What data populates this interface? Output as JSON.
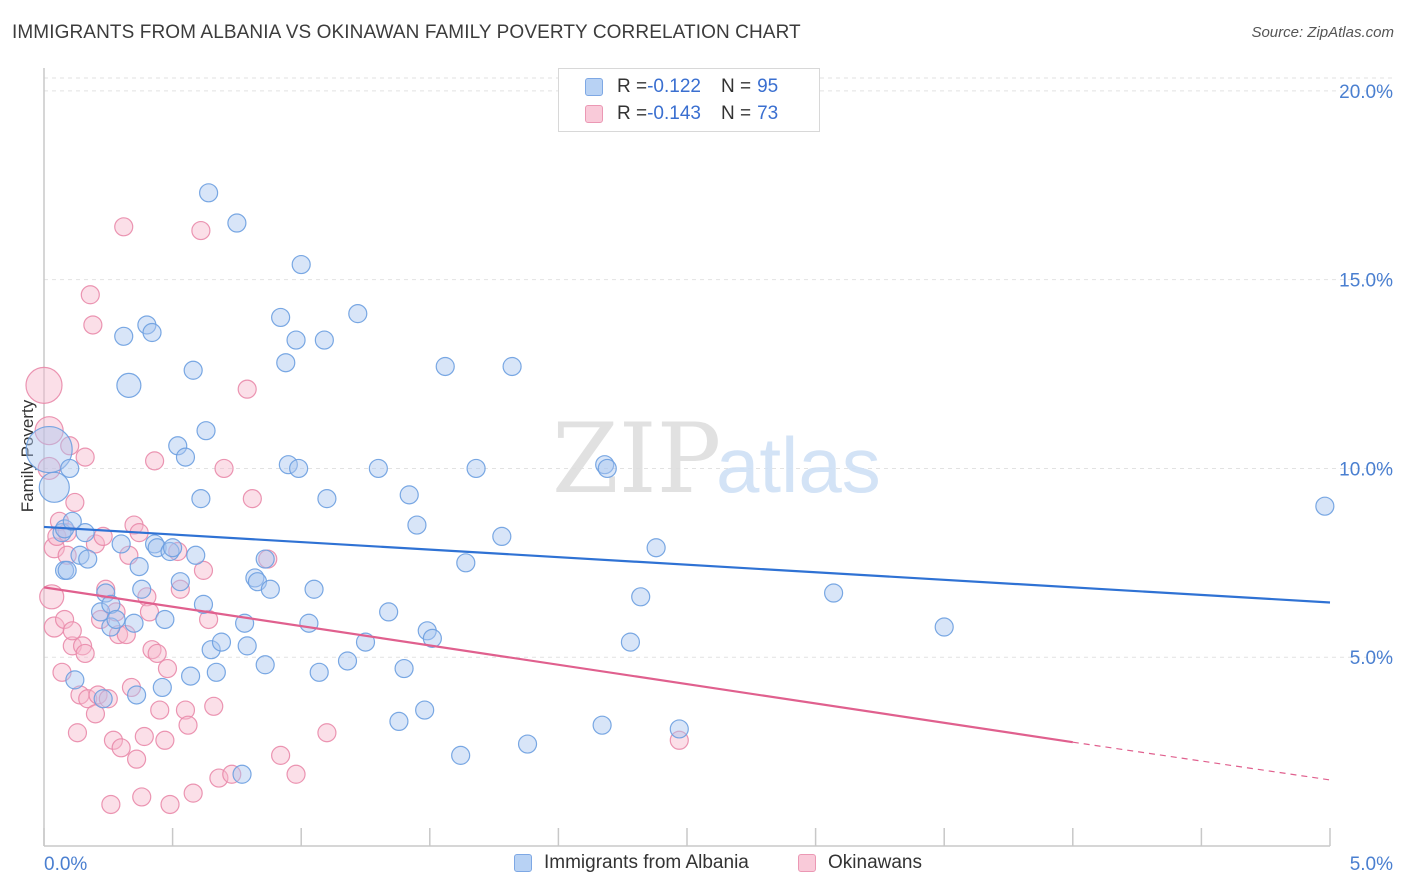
{
  "header": {
    "title": "IMMIGRANTS FROM ALBANIA VS OKINAWAN FAMILY POVERTY CORRELATION CHART",
    "source": "Source: ZipAtlas.com"
  },
  "watermark": {
    "zip": "ZIP",
    "atlas": "atlas"
  },
  "legend": {
    "rows": [
      {
        "r_label": "R = ",
        "r_value": "-0.122",
        "n_label": "N = ",
        "n_value": "95",
        "color": "#a8c6f0"
      },
      {
        "r_label": "R = ",
        "r_value": "-0.143",
        "n_label": "N = ",
        "n_value": "73",
        "color": "#f6b8cc"
      }
    ]
  },
  "chart_data": {
    "type": "scatter",
    "title": "IMMIGRANTS FROM ALBANIA VS OKINAWAN FAMILY POVERTY CORRELATION CHART",
    "ylabel": "Family Poverty",
    "xlabel": "",
    "xlim": [
      0,
      5
    ],
    "ylim": [
      0,
      20.5
    ],
    "x_tick_labels": [
      "0.0%",
      "5.0%"
    ],
    "y_ticks": [
      5,
      10,
      15,
      20
    ],
    "y_tick_labels": [
      "5.0%",
      "10.0%",
      "15.0%",
      "20.0%"
    ],
    "grid": "horizontal dashed",
    "legend_position": "top-center",
    "series": [
      {
        "name": "Immigrants from Albania",
        "color": "#a8c6f0",
        "stroke": "#6c9ee0",
        "trend": {
          "x": [
            0.0,
            5.0
          ],
          "y": [
            8.45,
            6.45
          ],
          "color": "#2f72d4"
        },
        "points": [
          [
            0.02,
            10.5
          ],
          [
            0.04,
            9.5
          ],
          [
            0.07,
            8.3
          ],
          [
            0.08,
            7.3
          ],
          [
            0.08,
            8.4
          ],
          [
            0.09,
            7.3
          ],
          [
            0.1,
            10.0
          ],
          [
            0.11,
            8.6
          ],
          [
            0.12,
            4.4
          ],
          [
            0.14,
            7.7
          ],
          [
            0.16,
            8.3
          ],
          [
            0.17,
            7.6
          ],
          [
            0.22,
            6.2
          ],
          [
            0.23,
            3.9
          ],
          [
            0.24,
            6.7
          ],
          [
            0.26,
            5.8
          ],
          [
            0.26,
            6.4
          ],
          [
            0.28,
            6.0
          ],
          [
            0.3,
            8.0
          ],
          [
            0.31,
            13.5
          ],
          [
            0.33,
            12.2
          ],
          [
            0.35,
            5.9
          ],
          [
            0.36,
            4.0
          ],
          [
            0.37,
            7.4
          ],
          [
            0.38,
            6.8
          ],
          [
            0.4,
            13.8
          ],
          [
            0.42,
            13.6
          ],
          [
            0.43,
            8.0
          ],
          [
            0.44,
            7.9
          ],
          [
            0.46,
            4.2
          ],
          [
            0.47,
            6.0
          ],
          [
            0.49,
            7.8
          ],
          [
            0.5,
            7.9
          ],
          [
            0.52,
            10.6
          ],
          [
            0.53,
            7.0
          ],
          [
            0.55,
            10.3
          ],
          [
            0.57,
            4.5
          ],
          [
            0.58,
            12.6
          ],
          [
            0.59,
            7.7
          ],
          [
            0.61,
            9.2
          ],
          [
            0.62,
            6.4
          ],
          [
            0.63,
            11.0
          ],
          [
            0.64,
            17.3
          ],
          [
            0.65,
            5.2
          ],
          [
            0.67,
            4.6
          ],
          [
            0.69,
            5.4
          ],
          [
            0.75,
            16.5
          ],
          [
            0.77,
            1.9
          ],
          [
            0.78,
            5.9
          ],
          [
            0.79,
            5.3
          ],
          [
            0.82,
            7.1
          ],
          [
            0.83,
            7.0
          ],
          [
            0.86,
            7.6
          ],
          [
            0.86,
            4.8
          ],
          [
            0.88,
            6.8
          ],
          [
            0.92,
            14.0
          ],
          [
            0.94,
            12.8
          ],
          [
            0.95,
            10.1
          ],
          [
            0.98,
            13.4
          ],
          [
            0.99,
            10.0
          ],
          [
            1.0,
            15.4
          ],
          [
            1.03,
            5.9
          ],
          [
            1.05,
            6.8
          ],
          [
            1.07,
            4.6
          ],
          [
            1.09,
            13.4
          ],
          [
            1.1,
            9.2
          ],
          [
            1.18,
            4.9
          ],
          [
            1.22,
            14.1
          ],
          [
            1.25,
            5.4
          ],
          [
            1.3,
            10.0
          ],
          [
            1.34,
            6.2
          ],
          [
            1.38,
            3.3
          ],
          [
            1.4,
            4.7
          ],
          [
            1.42,
            9.3
          ],
          [
            1.45,
            8.5
          ],
          [
            1.48,
            3.6
          ],
          [
            1.49,
            5.7
          ],
          [
            1.51,
            5.5
          ],
          [
            1.56,
            12.7
          ],
          [
            1.62,
            2.4
          ],
          [
            1.64,
            7.5
          ],
          [
            1.68,
            10.0
          ],
          [
            1.78,
            8.2
          ],
          [
            1.82,
            12.7
          ],
          [
            1.88,
            2.7
          ],
          [
            2.17,
            3.2
          ],
          [
            2.18,
            10.1
          ],
          [
            2.19,
            10.0
          ],
          [
            2.28,
            5.4
          ],
          [
            2.32,
            6.6
          ],
          [
            2.38,
            7.9
          ],
          [
            2.47,
            3.1
          ],
          [
            3.07,
            6.7
          ],
          [
            3.5,
            5.8
          ],
          [
            4.98,
            9.0
          ]
        ],
        "sizes": [
          46,
          30,
          18,
          18,
          18,
          18,
          18,
          18,
          18,
          18,
          18,
          18,
          18,
          18,
          18,
          18,
          18,
          18,
          18,
          18,
          24,
          18,
          18,
          18,
          18,
          18,
          18,
          18,
          18,
          18,
          18,
          18,
          18,
          18,
          18,
          18,
          18,
          18,
          18,
          18,
          18,
          18,
          18,
          18,
          18,
          18,
          18,
          18,
          18,
          18,
          18,
          18,
          18,
          18,
          18,
          18,
          18,
          18,
          18,
          18,
          18,
          18,
          18,
          18,
          18,
          18,
          18,
          18,
          18,
          18,
          18,
          18,
          18,
          18,
          18,
          18,
          18,
          18,
          18,
          18,
          18,
          18,
          18,
          18,
          18,
          18,
          18,
          18,
          18,
          18,
          18,
          18,
          18,
          18,
          18
        ]
      },
      {
        "name": "Okinawans",
        "color": "#f6b8cc",
        "stroke": "#e98aaa",
        "trend": {
          "x": [
            0.0,
            4.0
          ],
          "y": [
            6.85,
            2.75
          ],
          "color": "#e0608e",
          "dashed_extension": {
            "x": [
              4.0,
              5.0
            ],
            "y": [
              2.75,
              1.75
            ]
          }
        },
        "points": [
          [
            0.0,
            12.2
          ],
          [
            0.02,
            11.0
          ],
          [
            0.02,
            10.0
          ],
          [
            0.03,
            6.6
          ],
          [
            0.04,
            5.8
          ],
          [
            0.04,
            7.9
          ],
          [
            0.05,
            8.2
          ],
          [
            0.06,
            8.6
          ],
          [
            0.07,
            4.6
          ],
          [
            0.08,
            6.0
          ],
          [
            0.09,
            8.3
          ],
          [
            0.09,
            7.7
          ],
          [
            0.1,
            10.6
          ],
          [
            0.11,
            5.3
          ],
          [
            0.11,
            5.7
          ],
          [
            0.12,
            9.1
          ],
          [
            0.13,
            3.0
          ],
          [
            0.14,
            4.0
          ],
          [
            0.15,
            5.3
          ],
          [
            0.16,
            5.1
          ],
          [
            0.16,
            10.3
          ],
          [
            0.17,
            3.9
          ],
          [
            0.18,
            14.6
          ],
          [
            0.19,
            13.8
          ],
          [
            0.2,
            3.5
          ],
          [
            0.2,
            8.0
          ],
          [
            0.21,
            4.0
          ],
          [
            0.22,
            6.0
          ],
          [
            0.23,
            8.2
          ],
          [
            0.24,
            6.8
          ],
          [
            0.25,
            3.9
          ],
          [
            0.26,
            1.1
          ],
          [
            0.27,
            2.8
          ],
          [
            0.28,
            6.2
          ],
          [
            0.29,
            5.6
          ],
          [
            0.3,
            2.6
          ],
          [
            0.31,
            16.4
          ],
          [
            0.32,
            5.6
          ],
          [
            0.33,
            7.7
          ],
          [
            0.34,
            4.2
          ],
          [
            0.35,
            8.5
          ],
          [
            0.36,
            2.3
          ],
          [
            0.37,
            8.3
          ],
          [
            0.38,
            1.3
          ],
          [
            0.39,
            2.9
          ],
          [
            0.4,
            6.6
          ],
          [
            0.41,
            6.2
          ],
          [
            0.42,
            5.2
          ],
          [
            0.43,
            10.2
          ],
          [
            0.44,
            5.1
          ],
          [
            0.45,
            3.6
          ],
          [
            0.47,
            2.8
          ],
          [
            0.48,
            4.7
          ],
          [
            0.49,
            1.1
          ],
          [
            0.52,
            7.8
          ],
          [
            0.53,
            6.8
          ],
          [
            0.55,
            3.6
          ],
          [
            0.56,
            3.2
          ],
          [
            0.58,
            1.4
          ],
          [
            0.61,
            16.3
          ],
          [
            0.62,
            7.3
          ],
          [
            0.64,
            6.0
          ],
          [
            0.66,
            3.7
          ],
          [
            0.68,
            1.8
          ],
          [
            0.7,
            10.0
          ],
          [
            0.73,
            1.9
          ],
          [
            0.79,
            12.1
          ],
          [
            0.81,
            9.2
          ],
          [
            0.87,
            7.6
          ],
          [
            0.92,
            2.4
          ],
          [
            0.98,
            1.9
          ],
          [
            1.1,
            3.0
          ],
          [
            2.47,
            2.8
          ]
        ],
        "sizes": [
          36,
          28,
          22,
          24,
          20,
          20,
          18,
          18,
          18,
          18,
          18,
          18,
          18,
          18,
          18,
          18,
          18,
          18,
          18,
          18,
          18,
          18,
          18,
          18,
          18,
          18,
          18,
          18,
          18,
          18,
          18,
          18,
          18,
          18,
          18,
          18,
          18,
          18,
          18,
          18,
          18,
          18,
          18,
          18,
          18,
          18,
          18,
          18,
          18,
          18,
          18,
          18,
          18,
          18,
          18,
          18,
          18,
          18,
          18,
          18,
          18,
          18,
          18,
          18,
          18,
          18,
          18,
          18,
          18,
          18,
          18,
          18,
          18
        ]
      }
    ]
  }
}
